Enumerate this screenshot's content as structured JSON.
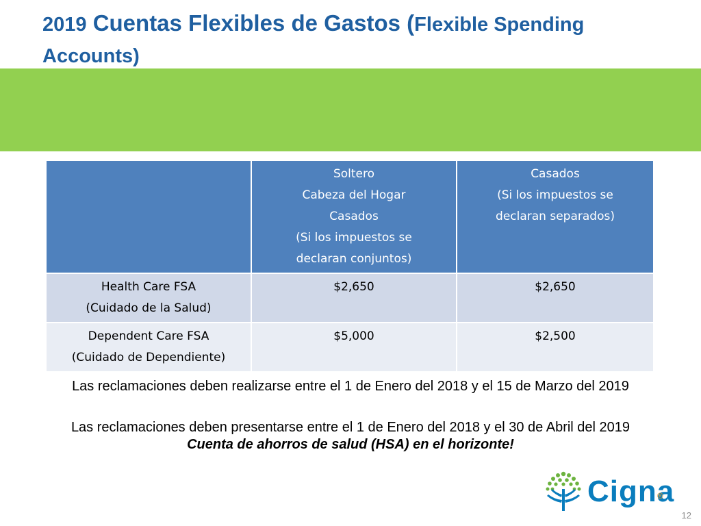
{
  "title": {
    "year": "2019",
    "main": "Cuentas Flexibles de Gastos (",
    "english": "Flexible Spending Accounts)"
  },
  "table": {
    "header": {
      "empty": "",
      "col1": [
        "Soltero",
        "Cabeza del Hogar",
        "Casados",
        "(Si los impuestos se",
        "declaran conjuntos)"
      ],
      "col2": [
        "Casados",
        "(Si los impuestos se",
        "declaran separados)"
      ]
    },
    "rows": [
      {
        "label": [
          "Health Care FSA",
          "(Cuidado de la  Salud)"
        ],
        "col1": "$2,650",
        "col2": "$2,650"
      },
      {
        "label": [
          "Dependent Care FSA",
          "(Cuidado de Dependiente)"
        ],
        "col1": "$5,000",
        "col2": "$2,500"
      }
    ]
  },
  "notes": {
    "line1": "Las reclamaciones deben realizarse entre el 1 de Enero del 2018 y el 15 de Marzo del 2019",
    "line2": "Las reclamaciones deben presentarse entre el 1 de Enero del 2018 y el 30 de Abril del 2019",
    "line3": "Cuenta de ahorros de salud (HSA) en el horizonte!"
  },
  "logo": {
    "text": "Cigna",
    "reg": "®"
  },
  "page_number": "12",
  "colors": {
    "title": "#1f5fa0",
    "green_bar": "#92d050",
    "table_header": "#4f81bd",
    "row1": "#d0d8e8",
    "row2": "#e9edf4",
    "logo_blue": "#0a7dbd",
    "logo_green": "#6cb33f",
    "logo_orange": "#f29d1c"
  }
}
